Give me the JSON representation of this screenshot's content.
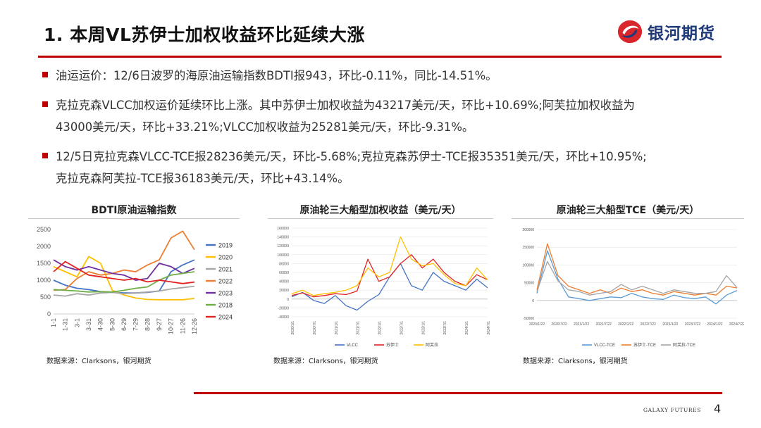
{
  "slide": {
    "title": "1. 本周VL苏伊士加权收益环比延续大涨",
    "brand": "银河期货",
    "footer_brand": "GALAXY FUTURES",
    "page_number": "4"
  },
  "bullets": [
    "油运运价：12/6日波罗的海原油运输指数BDTI报943，环比-0.11%，同比-14.51%。",
    "克拉克森VLCC加权运价延续环比上涨。其中苏伊士加权收益为43217美元/天，环比+10.69%;阿芙拉加权收益为\n43000美元/天，环比+33.21%;VLCC加权收益为25281美元/天，环比-9.31%。",
    "12/5日克拉克森VLCC-TCE报28236美元/天，环比-5.68%;克拉克森苏伊士-TCE报35351美元/天，环比+10.95%;\n克拉克森阿芙拉-TCE报36183美元/天，环比+43.14%。"
  ],
  "sources": [
    "数据来源：Clarksons，银河期货",
    "数据来源：Clarksons，银河期货",
    "数据来源：Clarksons，银河期货"
  ],
  "chart_data": [
    {
      "type": "line",
      "title": "BDTI原油运输指数",
      "x_ticks": [
        "1-1",
        "1-31",
        "3-1",
        "3-31",
        "4-30",
        "5-30",
        "6-29",
        "7-29",
        "8-28",
        "9-27",
        "10-27",
        "11-26",
        "12-26"
      ],
      "ylim": [
        0,
        2500
      ],
      "y_ticks": [
        0,
        500,
        1000,
        1500,
        2000,
        2500
      ],
      "legend_position": "right",
      "series": [
        {
          "name": "2019",
          "color": "#4472c4",
          "values": [
            1000,
            850,
            760,
            720,
            660,
            640,
            620,
            620,
            640,
            680,
            1250,
            1450,
            1600
          ]
        },
        {
          "name": "2020",
          "color": "#ffc000",
          "values": [
            1400,
            1250,
            1100,
            1700,
            1500,
            700,
            560,
            470,
            430,
            420,
            420,
            420,
            460
          ]
        },
        {
          "name": "2021",
          "color": "#a5a5a5",
          "values": [
            560,
            530,
            600,
            560,
            620,
            640,
            600,
            620,
            650,
            680,
            740,
            780,
            820
          ]
        },
        {
          "name": "2022",
          "color": "#ed7d31",
          "values": [
            700,
            720,
            1050,
            1250,
            1150,
            1200,
            1300,
            1250,
            1450,
            1600,
            2250,
            2450,
            1900
          ]
        },
        {
          "name": "2023",
          "color": "#7030a0",
          "values": [
            1600,
            1400,
            1300,
            1400,
            1300,
            1200,
            1150,
            1000,
            1050,
            1500,
            1400,
            1200,
            1350
          ]
        },
        {
          "name": "2018",
          "color": "#70ad47",
          "values": [
            720,
            700,
            680,
            650,
            660,
            650,
            700,
            760,
            800,
            1000,
            1150,
            1200,
            1250
          ]
        },
        {
          "name": "2024",
          "color": "#e32222",
          "values": [
            1250,
            1550,
            1350,
            1150,
            1100,
            1050,
            1000,
            1050,
            950,
            1000,
            950,
            900,
            943
          ]
        }
      ]
    },
    {
      "type": "line",
      "title": "原油轮三大船型加权收益（美元/天）",
      "x_ticks": [
        "2020/1/1",
        "2020/7/1",
        "2021/1/1",
        "2021/7/1",
        "2022/1/1",
        "2022/7/1",
        "2023/1/1",
        "2023/7/1",
        "2024/1/1",
        "2024/7/1"
      ],
      "ylim": [
        -40000,
        160000
      ],
      "y_ticks": [
        -40000,
        -20000,
        0,
        20000,
        40000,
        60000,
        80000,
        100000,
        120000,
        140000,
        160000
      ],
      "legend_position": "bottom",
      "series": [
        {
          "name": "VLCC",
          "color": "#4472c4",
          "values": [
            5000,
            15000,
            -3000,
            -10000,
            8000,
            -15000,
            -25000,
            -5000,
            10000,
            50000,
            80000,
            30000,
            20000,
            60000,
            40000,
            30000,
            20000,
            45000,
            25281
          ]
        },
        {
          "name": "苏伊士",
          "color": "#e32222",
          "values": [
            8000,
            14000,
            5000,
            8000,
            12000,
            10000,
            18000,
            90000,
            40000,
            50000,
            80000,
            100000,
            70000,
            90000,
            60000,
            40000,
            30000,
            55000,
            43217
          ]
        },
        {
          "name": "阿芙拉",
          "color": "#ffc000",
          "values": [
            12000,
            20000,
            8000,
            12000,
            15000,
            20000,
            30000,
            70000,
            50000,
            60000,
            140000,
            90000,
            75000,
            80000,
            55000,
            35000,
            30000,
            70000,
            43000
          ]
        }
      ]
    },
    {
      "type": "line",
      "title": "原油轮三大船型TCE（美元/天）",
      "x_ticks": [
        "2020/1/22",
        "2020/7/22",
        "2021/1/22",
        "2021/7/22",
        "2022/1/22",
        "2022/7/22",
        "2023/1/22",
        "2023/7/22",
        "2024/1/22",
        "2024/7/22"
      ],
      "ylim": [
        -50000,
        200000
      ],
      "y_ticks": [
        -50000,
        0,
        50000,
        100000,
        150000,
        200000
      ],
      "legend_position": "bottom",
      "series": [
        {
          "name": "VLCC-TCE",
          "color": "#5b9bd5",
          "values": [
            20000,
            140000,
            60000,
            10000,
            5000,
            0,
            5000,
            10000,
            8000,
            20000,
            10000,
            5000,
            3000,
            15000,
            8000,
            5000,
            10000,
            -10000,
            15000,
            28236
          ]
        },
        {
          "name": "苏伊士-TCE",
          "color": "#ed7d31",
          "values": [
            30000,
            160000,
            70000,
            40000,
            30000,
            20000,
            30000,
            20000,
            35000,
            25000,
            30000,
            20000,
            15000,
            25000,
            20000,
            15000,
            20000,
            15000,
            40000,
            35351
          ]
        },
        {
          "name": "阿芙拉-TCE",
          "color": "#a5a5a5",
          "values": [
            25000,
            110000,
            55000,
            30000,
            25000,
            15000,
            20000,
            25000,
            45000,
            30000,
            40000,
            30000,
            20000,
            30000,
            25000,
            20000,
            20000,
            25000,
            70000,
            36183
          ]
        }
      ]
    }
  ]
}
